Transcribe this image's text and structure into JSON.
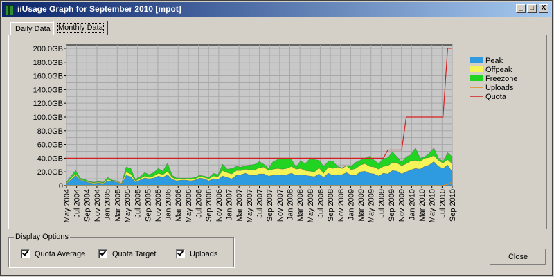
{
  "window": {
    "title": "iiUsage Graph for September 2010 [mpot]"
  },
  "titlebar_buttons": {
    "minimize": "_",
    "maximize": "□",
    "close": "X"
  },
  "tabs": [
    {
      "label": "Daily Data"
    },
    {
      "label": "Monthly Data"
    }
  ],
  "options": {
    "title": "Display Options",
    "items": [
      {
        "label": "Quota Average"
      },
      {
        "label": "Quota Target"
      },
      {
        "label": "Uploads"
      }
    ]
  },
  "close_button": {
    "label": "Close"
  },
  "colors": {
    "peak": "#2e9be0",
    "offpeak": "#f4f45a",
    "freezone": "#22d422",
    "uploads": "#e08a1a",
    "quota": "#d42020"
  },
  "chart_data": {
    "type": "area",
    "y_ticks": [
      "0",
      "20.0GB",
      "40.0GB",
      "60.0GB",
      "80.0GB",
      "100.0GB",
      "120.0GB",
      "140.0GB",
      "160.0GB",
      "180.0GB",
      "200.0GB"
    ],
    "ylim": [
      0,
      205
    ],
    "x_labels": [
      "May 2004",
      "Jul 2004",
      "Sep 2004",
      "Nov 2004",
      "Jan 2005",
      "Mar 2005",
      "May 2005",
      "Jul 2005",
      "Sep 2005",
      "Nov 2005",
      "Jan 2006",
      "Mar 2006",
      "May 2006",
      "Jul 2006",
      "Sep 2006",
      "Nov 2006",
      "Jan 2007",
      "Mar 2007",
      "May 2007",
      "Jul 2007",
      "Sep 2007",
      "Nov 2007",
      "Jan 2008",
      "Mar 2008",
      "May 2008",
      "Jul 2008",
      "Sep 2008",
      "Nov 2008",
      "Jan 2009",
      "Mar 2009",
      "May 2009",
      "Jul 2009",
      "Sep 2009",
      "Nov 2009",
      "Jan 2010",
      "Mar 2010",
      "May 2010",
      "Jul 2010",
      "Sep 2010"
    ],
    "grid": true,
    "legend_position": "right",
    "legend": [
      "Peak",
      "Offpeak",
      "Freezone",
      "Uploads",
      "Quota"
    ],
    "series": [
      {
        "name": "Peak",
        "values": [
          3,
          9,
          15,
          8,
          6,
          4,
          3,
          4,
          3,
          7,
          6,
          5,
          2,
          15,
          13,
          5,
          8,
          11,
          10,
          11,
          14,
          12,
          16,
          9,
          7,
          8,
          8,
          7,
          8,
          11,
          10,
          7,
          10,
          9,
          14,
          12,
          10,
          15,
          16,
          18,
          15,
          15,
          17,
          17,
          14,
          15,
          16,
          15,
          16,
          18,
          15,
          16,
          15,
          14,
          13,
          17,
          12,
          18,
          15,
          16,
          16,
          19,
          15,
          15,
          20,
          21,
          18,
          17,
          14,
          18,
          17,
          22,
          21,
          17,
          20,
          23,
          25,
          24,
          28,
          30,
          35,
          28,
          25,
          30,
          20
        ]
      },
      {
        "name": "Offpeak",
        "values": [
          4,
          11,
          17,
          9,
          7,
          5,
          4,
          5,
          4,
          9,
          7,
          6,
          3,
          20,
          17,
          7,
          10,
          14,
          12,
          14,
          18,
          16,
          21,
          12,
          9,
          10,
          10,
          9,
          10,
          13,
          12,
          10,
          14,
          13,
          22,
          19,
          17,
          22,
          22,
          24,
          23,
          23,
          26,
          27,
          22,
          24,
          25,
          24,
          25,
          28,
          24,
          25,
          22,
          21,
          20,
          26,
          18,
          27,
          25,
          27,
          25,
          29,
          23,
          25,
          30,
          32,
          28,
          27,
          24,
          28,
          29,
          34,
          33,
          29,
          32,
          36,
          37,
          35,
          40,
          41,
          44,
          37,
          33,
          38,
          32
        ]
      },
      {
        "name": "Freezone",
        "values": [
          5,
          14,
          22,
          11,
          9,
          6,
          5,
          6,
          5,
          12,
          8,
          7,
          3,
          27,
          25,
          9,
          13,
          19,
          16,
          19,
          25,
          21,
          33,
          15,
          11,
          11,
          11,
          11,
          12,
          15,
          14,
          12,
          18,
          16,
          31,
          24,
          25,
          28,
          27,
          29,
          30,
          31,
          35,
          31,
          25,
          35,
          38,
          40,
          40,
          38,
          27,
          36,
          32,
          39,
          38,
          37,
          28,
          35,
          36,
          28,
          26,
          29,
          28,
          34,
          37,
          40,
          43,
          37,
          32,
          39,
          41,
          49,
          42,
          34,
          42,
          45,
          55,
          40,
          42,
          47,
          55,
          40,
          35,
          48,
          42
        ]
      },
      {
        "name": "Uploads",
        "values": [
          0,
          0,
          0,
          0,
          0,
          0,
          0,
          0,
          0,
          0,
          0,
          0,
          0,
          0,
          0,
          0,
          0,
          0,
          0,
          0,
          0,
          0,
          0,
          0,
          0,
          0,
          0,
          0,
          0,
          0,
          0,
          0,
          0,
          0,
          0,
          0,
          0,
          0,
          0,
          0,
          0,
          0,
          0,
          0,
          0,
          0,
          0,
          0,
          0,
          0,
          0,
          0,
          0,
          0,
          0,
          0,
          0,
          0,
          0,
          0,
          0,
          0,
          0,
          0,
          0,
          0,
          0,
          0,
          0,
          0,
          0,
          0,
          0,
          0,
          0,
          0,
          0,
          0,
          0,
          0,
          0,
          0,
          0,
          2,
          5
        ]
      },
      {
        "name": "Quota",
        "values": [
          40,
          40,
          40,
          40,
          40,
          40,
          40,
          40,
          40,
          40,
          40,
          40,
          40,
          40,
          40,
          40,
          40,
          40,
          40,
          40,
          40,
          40,
          40,
          40,
          40,
          40,
          40,
          40,
          40,
          40,
          40,
          40,
          40,
          40,
          40,
          40,
          40,
          40,
          40,
          40,
          40,
          40,
          40,
          40,
          40,
          40,
          40,
          40,
          40,
          40,
          40,
          40,
          40,
          40,
          40,
          40,
          40,
          40,
          40,
          40,
          40,
          40,
          40,
          40,
          40,
          40,
          40,
          40,
          40,
          40,
          52,
          52,
          52,
          52,
          100,
          100,
          100,
          100,
          100,
          100,
          100,
          100,
          100,
          200,
          200
        ]
      }
    ]
  }
}
